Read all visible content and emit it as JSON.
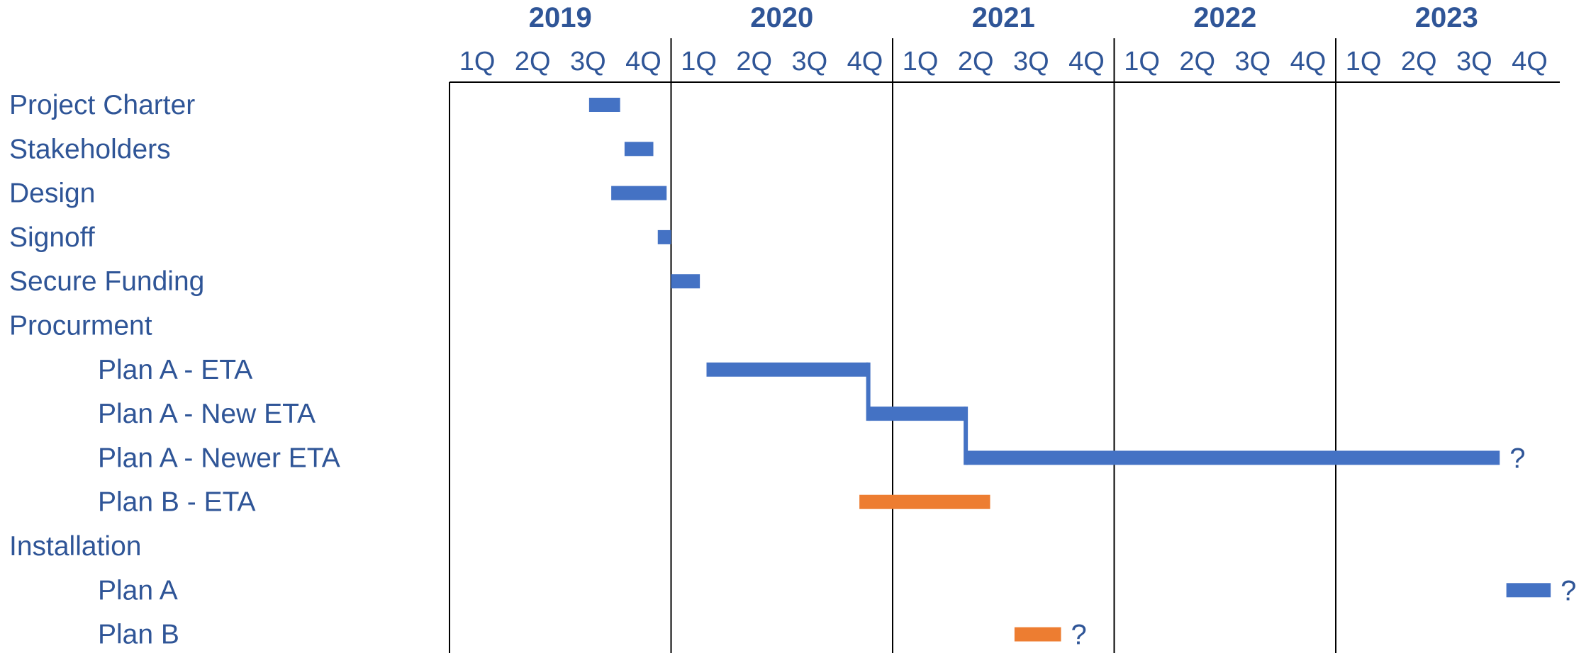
{
  "chart_data": {
    "type": "gantt",
    "title": "",
    "years": [
      "2019",
      "2020",
      "2021",
      "2022",
      "2023"
    ],
    "quarters": [
      "1Q",
      "2Q",
      "3Q",
      "4Q"
    ],
    "colors": {
      "text": "#2F5597",
      "plan_a": "#4472C4",
      "plan_b": "#ED7D31",
      "grid": "#000000"
    },
    "tasks": [
      {
        "label": "Project Charter",
        "indent": 0,
        "start": 2019.63,
        "end": 2019.77,
        "color": "#4472C4",
        "note": ""
      },
      {
        "label": "Stakeholders",
        "indent": 0,
        "start": 2019.79,
        "end": 2019.92,
        "color": "#4472C4",
        "note": ""
      },
      {
        "label": "Design",
        "indent": 0,
        "start": 2019.73,
        "end": 2019.98,
        "color": "#4472C4",
        "note": ""
      },
      {
        "label": "Signoff",
        "indent": 0,
        "start": 2019.94,
        "end": 2020.0,
        "color": "#4472C4",
        "note": ""
      },
      {
        "label": "Secure Funding",
        "indent": 0,
        "start": 2020.0,
        "end": 2020.13,
        "color": "#4472C4",
        "note": ""
      },
      {
        "label": "Procurment",
        "indent": 0,
        "start": null,
        "end": null,
        "color": "#4472C4",
        "note": ""
      },
      {
        "label": "Plan A - ETA",
        "indent": 1,
        "start": 2020.16,
        "end": 2020.89,
        "color": "#4472C4",
        "note": ""
      },
      {
        "label": "Plan A - New ETA",
        "indent": 1,
        "start": 2020.89,
        "end": 2021.33,
        "color": "#4472C4",
        "note": ""
      },
      {
        "label": "Plan A - Newer ETA",
        "indent": 1,
        "start": 2021.33,
        "end": 2023.74,
        "color": "#4472C4",
        "note": "?"
      },
      {
        "label": "Plan B - ETA",
        "indent": 1,
        "start": 2020.85,
        "end": 2021.44,
        "color": "#ED7D31",
        "note": ""
      },
      {
        "label": "Installation",
        "indent": 0,
        "start": null,
        "end": null,
        "color": "#4472C4",
        "note": ""
      },
      {
        "label": "Plan A",
        "indent": 1,
        "start": 2023.77,
        "end": 2023.97,
        "color": "#4472C4",
        "note": "?"
      },
      {
        "label": "Plan B",
        "indent": 1,
        "start": 2021.55,
        "end": 2021.76,
        "color": "#ED7D31",
        "note": "?"
      }
    ]
  }
}
